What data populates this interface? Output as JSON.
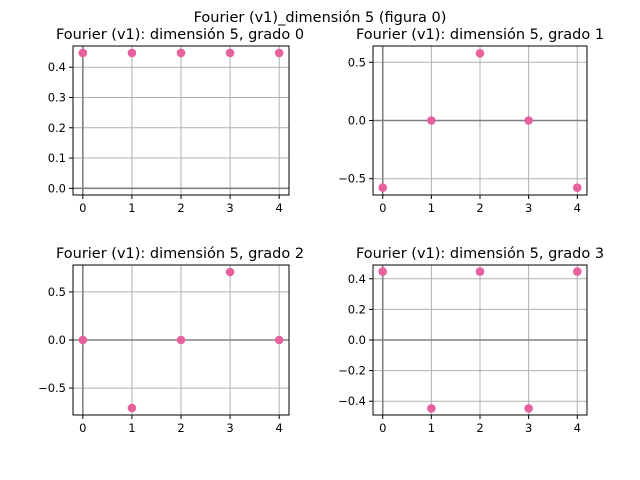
{
  "figure": {
    "suptitle": "Fourier (v1)_dimensión 5 (figura 0)"
  },
  "colors": {
    "marker": "#e7619f",
    "grid": "#b0b0b0",
    "zero_line": "#808080"
  },
  "chart_data": [
    {
      "type": "scatter",
      "title": "Fourier (v1): dimensión 5, grado 0",
      "xlabel": "",
      "ylabel": "",
      "x": [
        0,
        1,
        2,
        3,
        4
      ],
      "y": [
        0.447,
        0.447,
        0.447,
        0.447,
        0.447
      ],
      "xlim": [
        -0.2,
        4.2
      ],
      "ylim": [
        -0.022,
        0.47
      ],
      "xticks": [
        0,
        1,
        2,
        3,
        4
      ],
      "yticks": [
        0.0,
        0.1,
        0.2,
        0.3,
        0.4
      ],
      "ytick_labels": [
        "0.0",
        "0.1",
        "0.2",
        "0.3",
        "0.4"
      ],
      "grid": true
    },
    {
      "type": "scatter",
      "title": "Fourier (v1): dimensión 5, grado 1",
      "xlabel": "",
      "ylabel": "",
      "x": [
        0,
        1,
        2,
        3,
        4
      ],
      "y": [
        -0.577,
        0.0,
        0.577,
        0.0,
        -0.577
      ],
      "xlim": [
        -0.2,
        4.2
      ],
      "ylim": [
        -0.64,
        0.64
      ],
      "xticks": [
        0,
        1,
        2,
        3,
        4
      ],
      "yticks": [
        -0.5,
        0.0,
        0.5
      ],
      "ytick_labels": [
        "−0.5",
        "0.0",
        "0.5"
      ],
      "grid": true
    },
    {
      "type": "scatter",
      "title": "Fourier (v1): dimensión 5, grado 2",
      "xlabel": "",
      "ylabel": "",
      "x": [
        0,
        1,
        2,
        3,
        4
      ],
      "y": [
        0.0,
        -0.707,
        0.0,
        0.707,
        0.0
      ],
      "xlim": [
        -0.2,
        4.2
      ],
      "ylim": [
        -0.78,
        0.78
      ],
      "xticks": [
        0,
        1,
        2,
        3,
        4
      ],
      "yticks": [
        -0.5,
        0.0,
        0.5
      ],
      "ytick_labels": [
        "−0.5",
        "0.0",
        "0.5"
      ],
      "grid": true
    },
    {
      "type": "scatter",
      "title": "Fourier (v1): dimensión 5, grado 3",
      "xlabel": "",
      "ylabel": "",
      "x": [
        0,
        1,
        2,
        3,
        4
      ],
      "y": [
        0.447,
        -0.447,
        0.447,
        -0.447,
        0.447
      ],
      "xlim": [
        -0.2,
        4.2
      ],
      "ylim": [
        -0.49,
        0.49
      ],
      "xticks": [
        0,
        1,
        2,
        3,
        4
      ],
      "yticks": [
        -0.4,
        -0.2,
        0.0,
        0.2,
        0.4
      ],
      "ytick_labels": [
        "−0.4",
        "−0.2",
        "0.0",
        "0.2",
        "0.4"
      ],
      "grid": true
    }
  ]
}
